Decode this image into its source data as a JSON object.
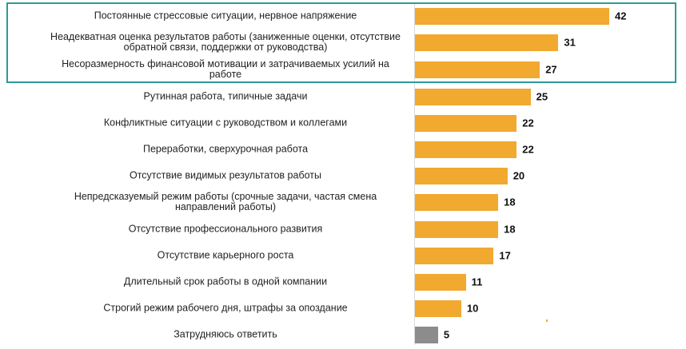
{
  "chart_data": {
    "type": "bar",
    "orientation": "horizontal",
    "categories": [
      "Постоянные стрессовые ситуации, нервное напряжение",
      "Неадекватная оценка результатов работы (заниженные оценки, отсутствие обратной связи, поддержки от руководства)",
      "Несоразмерность финансовой мотивации и затрачиваемых усилий на работе",
      "Рутинная работа, типичные задачи",
      "Конфликтные ситуации с руководством и коллегами",
      "Переработки, сверхурочная работа",
      "Отсутствие видимых результатов работы",
      "Непредсказуемый режим работы (срочные задачи, частая смена направлений работы)",
      "Отсутствие профессионального развития",
      "Отсутствие карьерного роста",
      "Длительный срок работы в одной компании",
      "Строгий режим рабочего дня, штрафы за опоздание",
      "Затрудняюсь ответить"
    ],
    "values": [
      42,
      31,
      27,
      25,
      22,
      22,
      20,
      18,
      18,
      17,
      11,
      10,
      5
    ],
    "bar_colors": [
      "#f2a92f",
      "#f2a92f",
      "#f2a92f",
      "#f2a92f",
      "#f2a92f",
      "#f2a92f",
      "#f2a92f",
      "#f2a92f",
      "#f2a92f",
      "#f2a92f",
      "#f2a92f",
      "#f2a92f",
      "#8c8c8c"
    ],
    "highlighted_categories": [
      0,
      1,
      2
    ],
    "highlight_color": "#2e9a9c",
    "xlim": [
      0,
      42
    ],
    "grid": false,
    "legend": "none"
  }
}
